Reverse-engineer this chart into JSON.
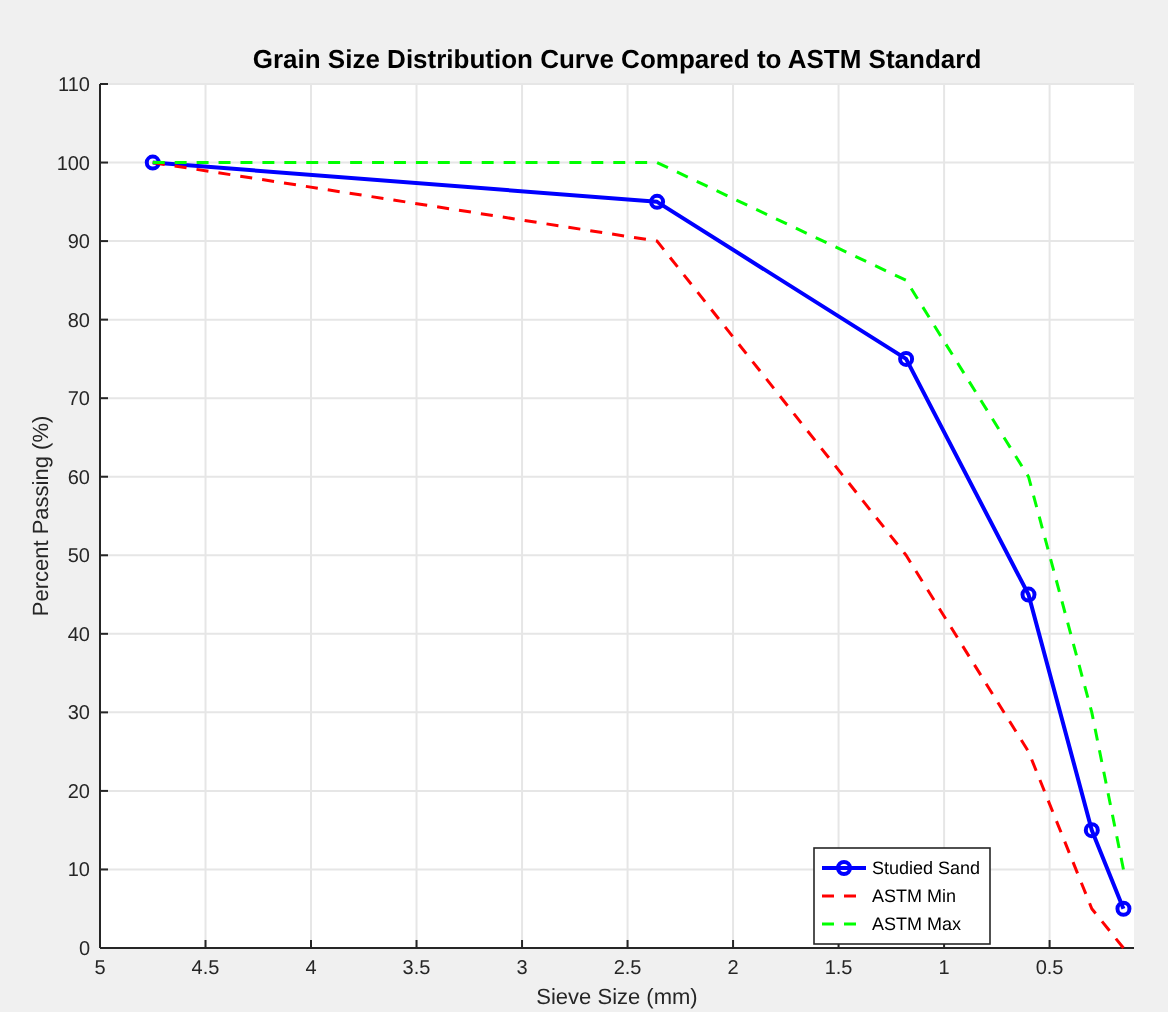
{
  "chart_data": {
    "type": "line",
    "title": "Grain Size Distribution Curve Compared to ASTM Standard",
    "xlabel": "Sieve Size (mm)",
    "ylabel": "Percent Passing (%)",
    "x": [
      4.75,
      2.36,
      1.18,
      0.6,
      0.3,
      0.15
    ],
    "series": [
      {
        "name": "Studied Sand",
        "color": "#0000ff",
        "values": [
          100,
          95,
          75,
          45,
          15,
          5
        ],
        "marker": "circle",
        "line_style": "solid"
      },
      {
        "name": "ASTM Min",
        "color": "#ff0000",
        "values": [
          100,
          90,
          50,
          25,
          5,
          0
        ],
        "marker": "none",
        "line_style": "dashed"
      },
      {
        "name": "ASTM Max",
        "color": "#00ff00",
        "values": [
          100,
          100,
          85,
          60,
          30,
          10
        ],
        "marker": "none",
        "line_style": "dashed"
      }
    ],
    "xlim": [
      5,
      0.1
    ],
    "xticks": [
      5,
      4.5,
      4,
      3.5,
      3,
      2.5,
      2,
      1.5,
      1,
      0.5
    ],
    "ylim": [
      0,
      110
    ],
    "yticks": [
      0,
      10,
      20,
      30,
      40,
      50,
      60,
      70,
      80,
      90,
      100,
      110
    ],
    "grid": true,
    "legend": "bottom right"
  }
}
